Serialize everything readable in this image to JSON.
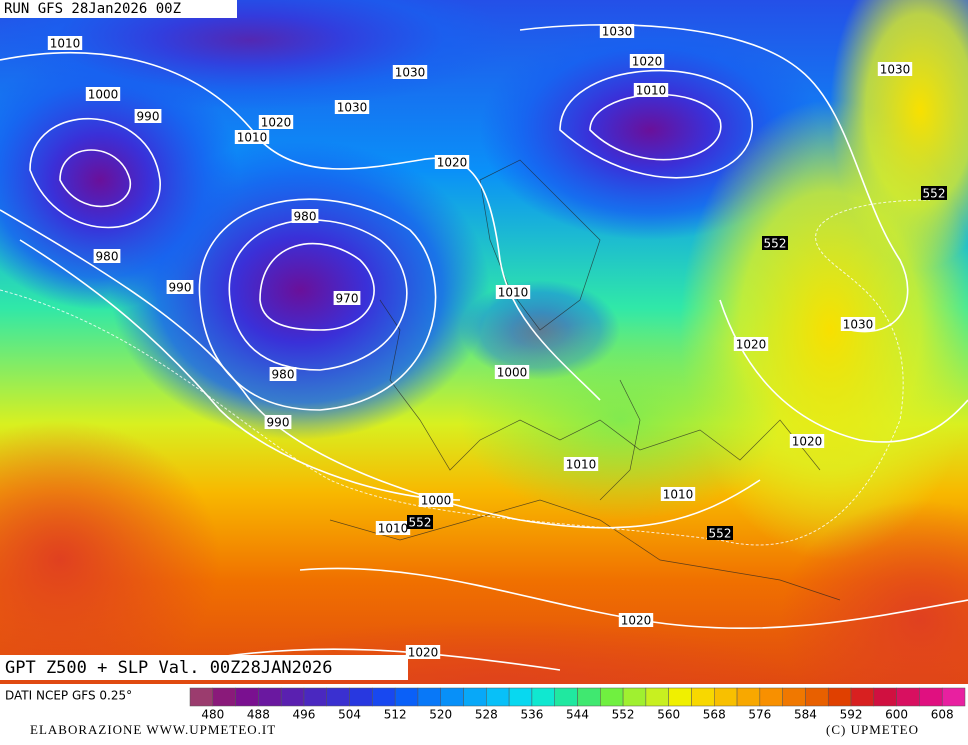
{
  "run_label": "RUN GFS 28Jan2026 00Z",
  "title": "GPT Z500 + SLP Val. 00Z28JAN2026",
  "source": "DATI NCEP GFS 0.25°",
  "credit": "ELABORAZIONE WWW.UPMETEO.IT",
  "copyright": "(C)   UPMETEO",
  "isobar_labels": [
    "1010",
    "1000",
    "990",
    "1010",
    "1020",
    "1030",
    "1030",
    "1030",
    "1020",
    "1010",
    "1030",
    "1020",
    "980",
    "970",
    "980",
    "990",
    "980",
    "990",
    "1010",
    "1000",
    "1010",
    "1010",
    "1000",
    "1010",
    "1020",
    "1020",
    "1030",
    "1020",
    "1020"
  ],
  "geopotential_labels": [
    "552",
    "552",
    "552",
    "552"
  ],
  "colorbar": {
    "labels": [
      "480",
      "488",
      "496",
      "504",
      "512",
      "520",
      "528",
      "536",
      "544",
      "552",
      "560",
      "568",
      "576",
      "584",
      "592",
      "600",
      "608"
    ],
    "colors": [
      "#9b3c6e",
      "#8a1a7a",
      "#7a1090",
      "#6a18a0",
      "#5a20b0",
      "#4a28c0",
      "#3a30d0",
      "#2838e0",
      "#1848f0",
      "#0a60f8",
      "#0878f8",
      "#0890f8",
      "#08a8f8",
      "#08c0f8",
      "#08d8f0",
      "#10e8d0",
      "#20e8a0",
      "#40e870",
      "#70f040",
      "#a0f030",
      "#c8f020",
      "#f0f000",
      "#f8d800",
      "#f8c000",
      "#f8a800",
      "#f89000",
      "#f07800",
      "#e86000",
      "#e04000",
      "#d82020",
      "#d01040",
      "#d81060",
      "#e01080",
      "#e820a0"
    ]
  }
}
